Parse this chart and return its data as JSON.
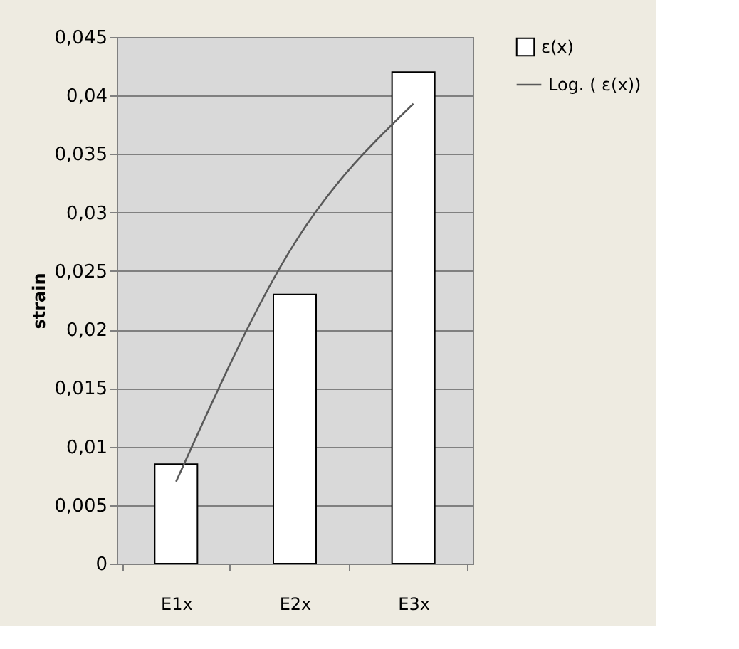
{
  "chart_data": {
    "type": "bar",
    "ylabel": "strain",
    "categories": [
      "E1x",
      "E2x",
      "E3x"
    ],
    "series": [
      {
        "name": "ε(x)",
        "color": "#ffffff",
        "values": [
          0.0085,
          0.023,
          0.042
        ]
      },
      {
        "name": "Log. ( ε(x))",
        "type": "line",
        "color": "#595959",
        "values": [
          0.007,
          0.0274,
          0.0393
        ]
      }
    ],
    "ylim": [
      0,
      0.045
    ],
    "yticks": [
      {
        "value": 0,
        "label": "0"
      },
      {
        "value": 0.005,
        "label": "0,005"
      },
      {
        "value": 0.01,
        "label": "0,01"
      },
      {
        "value": 0.015,
        "label": "0,015"
      },
      {
        "value": 0.02,
        "label": "0,02"
      },
      {
        "value": 0.025,
        "label": "0,025"
      },
      {
        "value": 0.03,
        "label": "0,03"
      },
      {
        "value": 0.035,
        "label": "0,035"
      },
      {
        "value": 0.04,
        "label": "0,04"
      },
      {
        "value": 0.045,
        "label": "0,045"
      }
    ],
    "grid": "y",
    "legend": "right"
  }
}
